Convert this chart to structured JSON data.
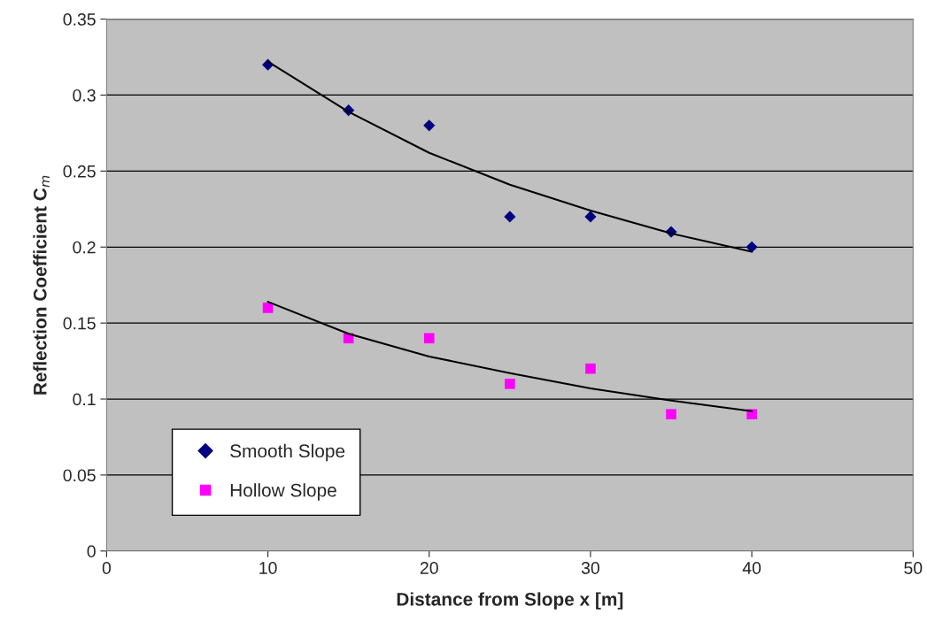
{
  "chart_data": {
    "type": "scatter",
    "xlabel": "Distance from Slope x [m]",
    "ylabel": "Reflection Coefficient C$_{m}$",
    "x": [
      10,
      15,
      20,
      25,
      30,
      35,
      40
    ],
    "series": [
      {
        "name": "Smooth Slope",
        "color": "#000080",
        "marker": "diamond",
        "values": [
          0.32,
          0.29,
          0.28,
          0.22,
          0.22,
          0.21,
          0.2
        ]
      },
      {
        "name": "Hollow Slope",
        "color": "#ff00ff",
        "marker": "square",
        "values": [
          0.16,
          0.14,
          0.14,
          0.11,
          0.12,
          0.09,
          0.09
        ]
      },
      {
        "type": "line",
        "color": "#000000",
        "marker": "none",
        "values": [
          0.322,
          0.289,
          0.262,
          0.241,
          0.224,
          0.209,
          0.197
        ]
      },
      {
        "type": "line",
        "color": "#000000",
        "marker": "none",
        "values": [
          0.164,
          0.143,
          0.128,
          0.117,
          0.107,
          0.099,
          0.092
        ]
      }
    ],
    "xlim": [
      0,
      50
    ],
    "xticks": [
      0,
      10,
      20,
      30,
      40,
      50
    ],
    "ylim": [
      0,
      0.35
    ],
    "yticks": [
      0,
      0.05,
      0.1,
      0.15,
      0.2,
      0.25,
      0.3,
      0.35
    ],
    "grid": "y",
    "legend": "bottom left"
  }
}
